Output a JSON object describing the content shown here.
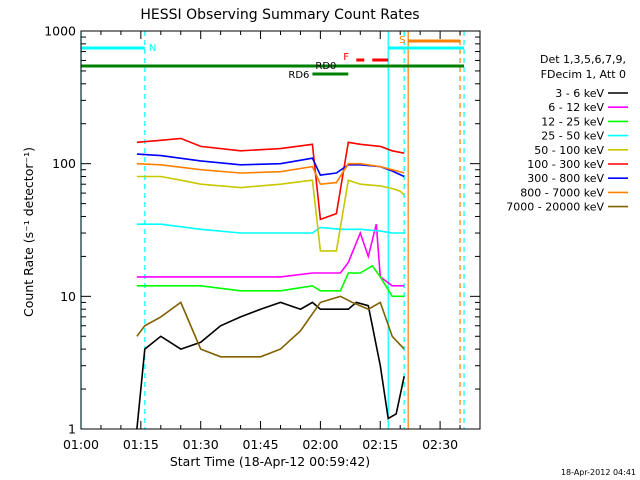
{
  "chart_data": {
    "type": "line",
    "title": "HESSI Observing Summary Count Rates",
    "xlabel": "Start Time (18-Apr-12 00:59:42)",
    "ylabel": "Count Rate (s⁻¹ detector⁻¹)",
    "yscale": "log",
    "ylim": [
      1,
      1000
    ],
    "xlim": [
      "01:00",
      "02:40"
    ],
    "x_unit": "UT",
    "grid": false,
    "legend_position": "right",
    "y_ticks": [
      {
        "value": 1,
        "label": "1"
      },
      {
        "value": 10,
        "label": "10"
      },
      {
        "value": 100,
        "label": "100"
      },
      {
        "value": 1000,
        "label": "1000"
      }
    ],
    "x_ticks": [
      {
        "value": "01:00",
        "label": "01:00"
      },
      {
        "value": "01:15",
        "label": "01:15"
      },
      {
        "value": "01:30",
        "label": "01:30"
      },
      {
        "value": "01:45",
        "label": "01:45"
      },
      {
        "value": "02:00",
        "label": "02:00"
      },
      {
        "value": "02:15",
        "label": "02:15"
      },
      {
        "value": "02:30",
        "label": "02:30"
      }
    ],
    "legend_header": [
      "Det 1,3,5,6,7,9,",
      "FDecim 1, Att 0"
    ],
    "footer": "18-Apr-2012 04:41",
    "series": [
      {
        "name": "3 - 6 keV",
        "color": "#000000",
        "points": [
          [
            "01:14",
            1
          ],
          [
            "01:16",
            4
          ],
          [
            "01:20",
            5
          ],
          [
            "01:25",
            4
          ],
          [
            "01:30",
            4.5
          ],
          [
            "01:35",
            6
          ],
          [
            "01:40",
            7
          ],
          [
            "01:45",
            8
          ],
          [
            "01:50",
            9
          ],
          [
            "01:55",
            8
          ],
          [
            "01:58",
            9
          ],
          [
            "02:00",
            8
          ],
          [
            "02:04",
            8
          ],
          [
            "02:07",
            8
          ],
          [
            "02:09",
            9
          ],
          [
            "02:12",
            8.5
          ],
          [
            "02:15",
            3
          ],
          [
            "02:17",
            1.2
          ],
          [
            "02:19",
            1.3
          ],
          [
            "02:21",
            2.5
          ]
        ]
      },
      {
        "name": "6 - 12 keV",
        "color": "#ff00ff",
        "points": [
          [
            "01:14",
            14
          ],
          [
            "01:20",
            14
          ],
          [
            "01:30",
            14
          ],
          [
            "01:40",
            14
          ],
          [
            "01:50",
            14
          ],
          [
            "01:58",
            15
          ],
          [
            "02:00",
            15
          ],
          [
            "02:05",
            15
          ],
          [
            "02:07",
            18
          ],
          [
            "02:10",
            30
          ],
          [
            "02:12",
            20
          ],
          [
            "02:14",
            35
          ],
          [
            "02:15",
            14
          ],
          [
            "02:18",
            12
          ],
          [
            "02:21",
            12
          ]
        ]
      },
      {
        "name": "12 - 25 keV",
        "color": "#00ff00",
        "points": [
          [
            "01:14",
            12
          ],
          [
            "01:20",
            12
          ],
          [
            "01:30",
            12
          ],
          [
            "01:40",
            11
          ],
          [
            "01:50",
            11
          ],
          [
            "01:58",
            12
          ],
          [
            "02:00",
            11
          ],
          [
            "02:05",
            11
          ],
          [
            "02:07",
            15
          ],
          [
            "02:10",
            15
          ],
          [
            "02:13",
            17
          ],
          [
            "02:15",
            14
          ],
          [
            "02:18",
            10
          ],
          [
            "02:21",
            10
          ]
        ]
      },
      {
        "name": "25 - 50 keV",
        "color": "#00ffff",
        "points": [
          [
            "01:14",
            35
          ],
          [
            "01:20",
            35
          ],
          [
            "01:30",
            32
          ],
          [
            "01:40",
            30
          ],
          [
            "01:50",
            30
          ],
          [
            "01:58",
            30
          ],
          [
            "02:00",
            33
          ],
          [
            "02:05",
            32
          ],
          [
            "02:07",
            32
          ],
          [
            "02:10",
            32
          ],
          [
            "02:15",
            31
          ],
          [
            "02:18",
            30
          ],
          [
            "02:21",
            30
          ]
        ]
      },
      {
        "name": "50 - 100 keV",
        "color": "#c8c800",
        "points": [
          [
            "01:14",
            80
          ],
          [
            "01:20",
            80
          ],
          [
            "01:25",
            75
          ],
          [
            "01:30",
            70
          ],
          [
            "01:40",
            66
          ],
          [
            "01:50",
            70
          ],
          [
            "01:58",
            75
          ],
          [
            "02:00",
            22
          ],
          [
            "02:04",
            22
          ],
          [
            "02:07",
            75
          ],
          [
            "02:10",
            70
          ],
          [
            "02:15",
            68
          ],
          [
            "02:18",
            65
          ],
          [
            "02:20",
            62
          ],
          [
            "02:21",
            58
          ]
        ]
      },
      {
        "name": "100 - 300 keV",
        "color": "#ff0000",
        "points": [
          [
            "01:14",
            145
          ],
          [
            "01:20",
            150
          ],
          [
            "01:25",
            155
          ],
          [
            "01:30",
            135
          ],
          [
            "01:40",
            125
          ],
          [
            "01:50",
            130
          ],
          [
            "01:58",
            140
          ],
          [
            "02:00",
            38
          ],
          [
            "02:04",
            42
          ],
          [
            "02:07",
            145
          ],
          [
            "02:10",
            140
          ],
          [
            "02:15",
            135
          ],
          [
            "02:18",
            125
          ],
          [
            "02:21",
            120
          ]
        ]
      },
      {
        "name": "300 - 800 keV",
        "color": "#0000ff",
        "points": [
          [
            "01:14",
            118
          ],
          [
            "01:20",
            115
          ],
          [
            "01:30",
            105
          ],
          [
            "01:40",
            98
          ],
          [
            "01:50",
            100
          ],
          [
            "01:58",
            110
          ],
          [
            "02:00",
            82
          ],
          [
            "02:04",
            85
          ],
          [
            "02:07",
            98
          ],
          [
            "02:10",
            98
          ],
          [
            "02:15",
            95
          ],
          [
            "02:18",
            88
          ],
          [
            "02:21",
            80
          ]
        ]
      },
      {
        "name": "800 - 7000 keV",
        "color": "#ff8000",
        "points": [
          [
            "01:14",
            100
          ],
          [
            "01:20",
            98
          ],
          [
            "01:30",
            90
          ],
          [
            "01:40",
            85
          ],
          [
            "01:50",
            87
          ],
          [
            "01:58",
            95
          ],
          [
            "02:00",
            70
          ],
          [
            "02:04",
            72
          ],
          [
            "02:07",
            100
          ],
          [
            "02:10",
            100
          ],
          [
            "02:15",
            95
          ],
          [
            "02:18",
            90
          ],
          [
            "02:21",
            85
          ]
        ]
      },
      {
        "name": "7000 - 20000 keV",
        "color": "#806000",
        "points": [
          [
            "01:14",
            5
          ],
          [
            "01:16",
            6
          ],
          [
            "01:20",
            7
          ],
          [
            "01:25",
            9
          ],
          [
            "01:30",
            4
          ],
          [
            "01:35",
            3.5
          ],
          [
            "01:40",
            3.5
          ],
          [
            "01:45",
            3.5
          ],
          [
            "01:50",
            4
          ],
          [
            "01:55",
            5.5
          ],
          [
            "02:00",
            9
          ],
          [
            "02:05",
            10
          ],
          [
            "02:08",
            9
          ],
          [
            "02:12",
            8
          ],
          [
            "02:15",
            9
          ],
          [
            "02:18",
            5
          ],
          [
            "02:21",
            4
          ]
        ]
      }
    ],
    "state_bars": [
      {
        "label": "N",
        "color": "#00ffff",
        "ranges": [
          [
            "01:00",
            "01:16"
          ],
          [
            "02:17",
            "02:36"
          ]
        ]
      },
      {
        "label": "S",
        "color": "#ff8000",
        "ranges": [
          [
            "02:22",
            "02:35"
          ]
        ]
      },
      {
        "label": "F",
        "color": "#ff0000",
        "ranges": [
          [
            "02:09",
            "02:11"
          ],
          [
            "02:13",
            "02:17"
          ]
        ]
      },
      {
        "label": "RD0",
        "color": "#008000",
        "ranges": [
          [
            "01:00",
            "02:36"
          ]
        ]
      },
      {
        "label": "RD6",
        "color": "#008000",
        "ranges": [
          [
            "01:58",
            "02:07"
          ]
        ]
      }
    ],
    "vertical_markers": [
      {
        "time": "01:00",
        "color": "#00ffff",
        "style": "solid"
      },
      {
        "time": "01:16",
        "color": "#00ffff",
        "style": "dashed"
      },
      {
        "time": "02:17",
        "color": "#00ffff",
        "style": "solid"
      },
      {
        "time": "02:21",
        "color": "#00ffff",
        "style": "dashed"
      },
      {
        "time": "02:22",
        "color": "#ff8000",
        "style": "solid"
      },
      {
        "time": "02:35",
        "color": "#ff8000",
        "style": "dashed"
      },
      {
        "time": "02:36",
        "color": "#00ffff",
        "style": "dashed"
      }
    ]
  }
}
